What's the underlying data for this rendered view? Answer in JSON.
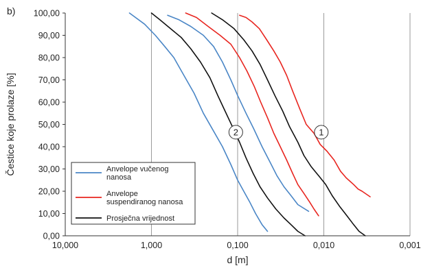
{
  "panel_label": "b)",
  "chart_data": {
    "type": "line",
    "xlabel": "d [m]",
    "ylabel": "Čestice koje prolaze  [%]",
    "x_scale": "log",
    "x_reversed": true,
    "xlim": [
      10,
      0.001
    ],
    "ylim": [
      0,
      100
    ],
    "x_ticks": [
      10,
      1,
      0.1,
      0.01,
      0.001
    ],
    "x_tick_labels": [
      "10,000",
      "1,000",
      "0,100",
      "0,010",
      "0,001"
    ],
    "y_ticks": [
      0,
      10,
      20,
      30,
      40,
      50,
      60,
      70,
      80,
      90,
      100
    ],
    "y_tick_labels": [
      "0,00",
      "10,00",
      "20,00",
      "30,00",
      "40,00",
      "50,00",
      "60,00",
      "70,00",
      "80,00",
      "90,00",
      "100,00"
    ],
    "grid": "vertical",
    "legend_position": "bottom-left",
    "legend": [
      {
        "label": [
          "Anvelope vučenog",
          "nanosa"
        ],
        "color": "#4a86c6"
      },
      {
        "label": [
          "Anvelope",
          "suspendiranog nanosa"
        ],
        "color": "#e8251f"
      },
      {
        "label": [
          "Prosječna vrijednost"
        ],
        "color": "#111111"
      }
    ],
    "series": [
      {
        "group": "blue",
        "color": "#4a86c6",
        "x": [
          1.8,
          1.2,
          0.9,
          0.7,
          0.55,
          0.42,
          0.32,
          0.25,
          0.19,
          0.15,
          0.12,
          0.1,
          0.085,
          0.072,
          0.062,
          0.052,
          0.045
        ],
        "y": [
          100,
          95,
          90,
          85,
          80,
          72,
          64,
          55,
          47,
          40,
          32,
          25,
          20,
          15,
          10,
          5,
          2
        ]
      },
      {
        "group": "blue",
        "color": "#4a86c6",
        "x": [
          0.65,
          0.48,
          0.35,
          0.25,
          0.19,
          0.15,
          0.12,
          0.1,
          0.08,
          0.065,
          0.052,
          0.042,
          0.035,
          0.029,
          0.024,
          0.02,
          0.015
        ],
        "y": [
          99,
          97,
          94,
          90,
          85,
          78,
          70,
          63,
          55,
          48,
          40,
          33,
          27,
          22,
          18,
          14,
          11
        ]
      },
      {
        "group": "red",
        "color": "#e8251f",
        "x": [
          0.4,
          0.3,
          0.22,
          0.16,
          0.12,
          0.095,
          0.078,
          0.064,
          0.054,
          0.045,
          0.038,
          0.032,
          0.027,
          0.023,
          0.02,
          0.017,
          0.0145,
          0.013,
          0.0115
        ],
        "y": [
          100,
          98,
          94,
          90,
          86,
          80,
          74,
          67,
          60,
          53,
          46,
          40,
          34,
          28,
          23,
          19,
          15,
          12,
          9
        ]
      },
      {
        "group": "red",
        "color": "#e8251f",
        "x": [
          0.095,
          0.08,
          0.068,
          0.056,
          0.046,
          0.038,
          0.032,
          0.027,
          0.023,
          0.019,
          0.016,
          0.013,
          0.011,
          0.0092,
          0.0076,
          0.0064,
          0.0055,
          0.0045,
          0.004,
          0.0036,
          0.0029
        ],
        "y": [
          99,
          98,
          96,
          93,
          88,
          83,
          78,
          72,
          65,
          57,
          50,
          46,
          41,
          38,
          34,
          29,
          26,
          23,
          21,
          20,
          17.5
        ]
      },
      {
        "group": "black",
        "color": "#111111",
        "x": [
          1.0,
          0.8,
          0.6,
          0.45,
          0.35,
          0.27,
          0.21,
          0.17,
          0.14,
          0.115,
          0.095,
          0.08,
          0.066,
          0.055,
          0.045,
          0.036,
          0.029,
          0.024,
          0.02,
          0.0165
        ],
        "y": [
          100,
          97,
          93,
          89,
          84,
          78,
          71,
          63,
          56,
          49,
          42,
          35,
          28,
          22,
          17,
          12,
          8,
          5,
          2,
          0
        ]
      },
      {
        "group": "black",
        "color": "#111111",
        "x": [
          0.2,
          0.15,
          0.11,
          0.085,
          0.068,
          0.055,
          0.045,
          0.037,
          0.03,
          0.025,
          0.02,
          0.017,
          0.014,
          0.0115,
          0.0095,
          0.008,
          0.0065,
          0.0054,
          0.0045,
          0.0039,
          0.0033
        ],
        "y": [
          100,
          97,
          93,
          88,
          83,
          77,
          70,
          63,
          56,
          49,
          42,
          36,
          31,
          27,
          23,
          18,
          13,
          9,
          5,
          2,
          0
        ]
      }
    ],
    "annotations": [
      {
        "text": "2",
        "x": 0.105,
        "y": 46.5
      },
      {
        "text": "1",
        "x": 0.0107,
        "y": 46.5
      }
    ]
  }
}
